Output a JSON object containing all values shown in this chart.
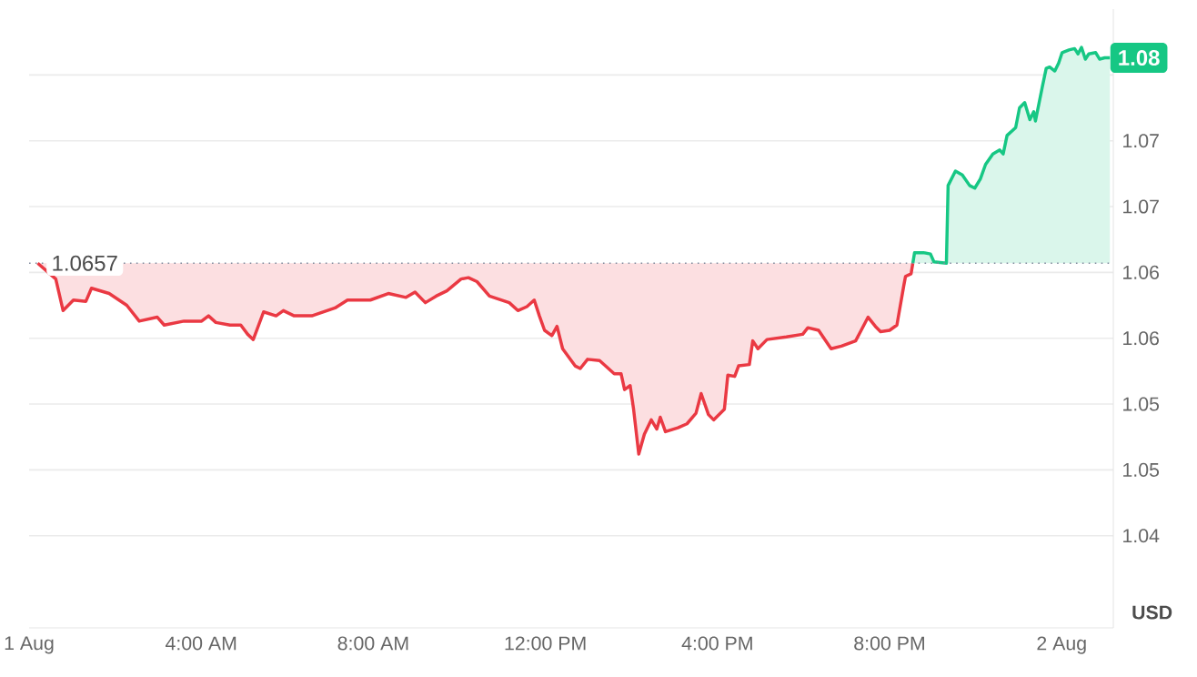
{
  "chart_data": {
    "type": "area",
    "xlim": [
      0,
      25.2
    ],
    "ylim": [
      1.038,
      1.085
    ],
    "xticks": [
      {
        "value": 0,
        "label": "1 Aug"
      },
      {
        "value": 4,
        "label": "4:00 AM"
      },
      {
        "value": 8,
        "label": "8:00 AM"
      },
      {
        "value": 12,
        "label": "12:00 PM"
      },
      {
        "value": 16,
        "label": "4:00 PM"
      },
      {
        "value": 20,
        "label": "8:00 PM"
      },
      {
        "value": 24,
        "label": "2 Aug"
      }
    ],
    "yticks": [
      {
        "value": 1.045,
        "label": "1.04"
      },
      {
        "value": 1.05,
        "label": "1.05"
      },
      {
        "value": 1.055,
        "label": "1.05"
      },
      {
        "value": 1.06,
        "label": "1.06"
      },
      {
        "value": 1.065,
        "label": "1.06"
      },
      {
        "value": 1.07,
        "label": "1.07"
      },
      {
        "value": 1.075,
        "label": "1.07"
      },
      {
        "value": 1.08,
        "label": null
      }
    ],
    "grid": "y",
    "ref_lines": [
      {
        "axis": "y",
        "value": 1.0657,
        "label": "1.0657",
        "color": "#808a9d",
        "line_style": "dotted"
      }
    ],
    "annotations": [
      {
        "text": "1.08",
        "x": 25.12,
        "y": 1.0813
      },
      "USD"
    ],
    "series": [
      {
        "color": "#ea3943",
        "x": [
          0.2,
          0.62,
          0.79,
          1.03,
          1.32,
          1.45,
          1.86,
          2.27,
          2.56,
          2.98,
          3.14,
          3.6,
          4.01,
          4.17,
          4.34,
          4.67,
          4.92,
          5.08,
          5.21,
          5.45,
          5.74,
          5.91,
          6.16,
          6.57,
          7.11,
          7.4,
          7.93,
          8.35,
          8.76,
          8.97,
          9.21,
          9.46,
          9.71,
          10.04,
          10.21,
          10.41,
          10.7,
          11.16,
          11.36,
          11.57,
          11.74,
          11.86,
          11.98,
          12.15,
          12.27,
          12.4,
          12.69,
          12.81,
          12.98,
          13.26,
          13.6,
          13.76,
          13.84,
          13.97,
          14.05,
          14.17,
          14.3,
          14.46,
          14.59,
          14.67,
          14.79,
          15.08,
          15.29,
          15.5,
          15.62,
          15.79,
          15.91,
          16.16,
          16.24,
          16.4,
          16.49,
          16.74,
          16.82,
          16.94,
          17.15,
          17.6,
          17.98,
          18.1,
          18.35,
          18.64,
          18.88,
          19.21,
          19.34,
          19.5,
          19.67,
          19.79,
          20.0,
          20.17,
          20.33,
          20.37,
          20.5,
          20.54
        ],
        "values": [
          1.0657,
          1.0645,
          1.0621,
          1.0629,
          1.0628,
          1.0638,
          1.0634,
          1.0625,
          1.0613,
          1.0616,
          1.061,
          1.0613,
          1.0613,
          1.0617,
          1.0612,
          1.061,
          1.061,
          1.0603,
          1.0599,
          1.062,
          1.0617,
          1.0621,
          1.0617,
          1.0617,
          1.0623,
          1.0629,
          1.0629,
          1.0634,
          1.0631,
          1.0635,
          1.0627,
          1.0632,
          1.0636,
          1.0645,
          1.0646,
          1.0643,
          1.0632,
          1.0627,
          1.0621,
          1.0624,
          1.0629,
          1.0617,
          1.0606,
          1.0602,
          1.0609,
          1.0592,
          1.0579,
          1.0577,
          1.0584,
          1.0583,
          1.0573,
          1.0573,
          1.0561,
          1.0564,
          1.0546,
          1.0512,
          1.0527,
          1.0538,
          1.0531,
          1.054,
          1.0529,
          1.0532,
          1.0535,
          1.0543,
          1.0558,
          1.0542,
          1.0538,
          1.0546,
          1.0572,
          1.0571,
          1.0579,
          1.058,
          1.0598,
          1.0592,
          1.0599,
          1.0601,
          1.0603,
          1.0608,
          1.0606,
          1.0592,
          1.0594,
          1.0598,
          1.0606,
          1.0616,
          1.0609,
          1.0605,
          1.0606,
          1.061,
          1.064,
          1.0647,
          1.0649,
          1.0657
        ]
      },
      {
        "color": "#16c784",
        "x": [
          20.54,
          20.58,
          20.79,
          20.95,
          21.03,
          21.32,
          21.36,
          21.53,
          21.69,
          21.86,
          21.98,
          22.11,
          22.23,
          22.4,
          22.56,
          22.64,
          22.73,
          22.93,
          23.02,
          23.14,
          23.26,
          23.35,
          23.39,
          23.55,
          23.64,
          23.72,
          23.84,
          23.93,
          24.01,
          24.17,
          24.3,
          24.38,
          24.46,
          24.55,
          24.63,
          24.79,
          24.88,
          25.0,
          25.12
        ],
        "values": [
          1.0657,
          1.0665,
          1.0665,
          1.0664,
          1.0658,
          1.0657,
          1.0716,
          1.0727,
          1.0724,
          1.0716,
          1.0714,
          1.0721,
          1.0732,
          1.074,
          1.0743,
          1.074,
          1.0754,
          1.076,
          1.0775,
          1.0779,
          1.0766,
          1.0772,
          1.0765,
          1.0791,
          1.0805,
          1.0806,
          1.0803,
          1.0809,
          1.0817,
          1.0819,
          1.082,
          1.0816,
          1.0821,
          1.0812,
          1.0816,
          1.0817,
          1.0812,
          1.0813,
          1.0813
        ]
      }
    ]
  }
}
